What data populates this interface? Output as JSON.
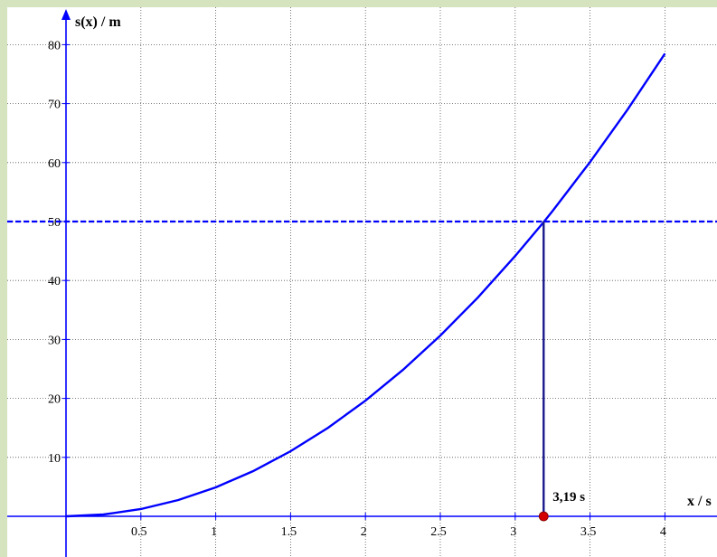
{
  "chart_data": {
    "type": "line",
    "title": "",
    "xlabel": "x / s",
    "ylabel": "s(x) / m",
    "xlim": [
      -0.4,
      4.4
    ],
    "ylim": [
      -5,
      84
    ],
    "grid": true,
    "x_ticks": [
      0.5,
      1,
      1.5,
      2,
      2.5,
      3,
      3.5,
      4
    ],
    "x_tick_labels": [
      "0.5",
      "1",
      "1.5",
      "2",
      "2.5",
      "3",
      "3.5",
      "4"
    ],
    "y_ticks": [
      10,
      20,
      30,
      40,
      50,
      60,
      70,
      80
    ],
    "y_tick_labels": [
      "10",
      "20",
      "30",
      "40",
      "50",
      "60",
      "70",
      "80"
    ],
    "series": [
      {
        "x": [
          0,
          0.25,
          0.5,
          0.75,
          1,
          1.25,
          1.5,
          1.75,
          2,
          2.25,
          2.5,
          2.75,
          3,
          3.19,
          3.25,
          3.5,
          3.75,
          4
        ],
        "y": [
          0,
          0.31,
          1.23,
          2.76,
          4.91,
          7.67,
          11.04,
          15.02,
          19.62,
          24.83,
          30.66,
          37.09,
          44.15,
          49.91,
          51.81,
          60.09,
          68.98,
          78.48
        ],
        "color": "#0000ff"
      }
    ],
    "reference_line": {
      "y": 50,
      "style": "dashed",
      "color": "#0000ff"
    },
    "vertical_marker": {
      "x": 3.19,
      "y": 50,
      "color": "#1a1a8c"
    },
    "point": {
      "x": 3.19,
      "y": 0,
      "color": "#d40000"
    },
    "annotation": {
      "text": "3,19 s",
      "x": 3.19,
      "y": 0
    }
  }
}
